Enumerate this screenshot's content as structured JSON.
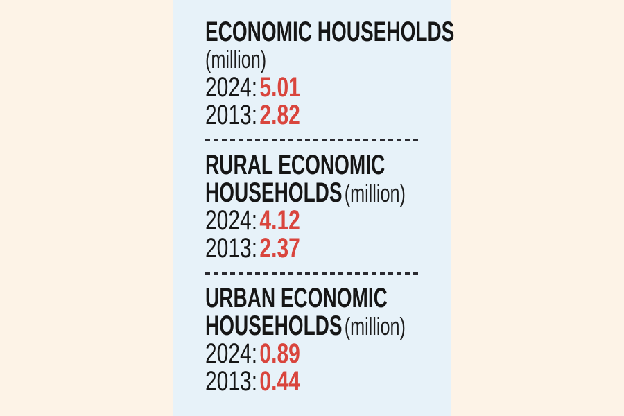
{
  "colors": {
    "page_background": "#fdf3e7",
    "panel_background": "#e7f2f9",
    "text": "#161616",
    "accent_red": "#d9453d",
    "divider": "#2b2b31"
  },
  "infographic": {
    "sections": [
      {
        "title_line1": "ECONOMIC HOUSEHOLDS",
        "unit": "(million)",
        "rows": [
          {
            "label": "2024:",
            "value": "5.01"
          },
          {
            "label": "2013:",
            "value": "2.82"
          }
        ]
      },
      {
        "title_line1": "RURAL ECONOMIC",
        "title_line2": "HOUSEHOLDS",
        "unit": "(million)",
        "rows": [
          {
            "label": "2024:",
            "value": "4.12"
          },
          {
            "label": "2013:",
            "value": "2.37"
          }
        ]
      },
      {
        "title_line1": "URBAN ECONOMIC",
        "title_line2": "HOUSEHOLDS",
        "unit": "(million)",
        "rows": [
          {
            "label": "2024:",
            "value": "0.89"
          },
          {
            "label": "2013:",
            "value": "0.44"
          }
        ]
      }
    ]
  },
  "chart_data": {
    "type": "table",
    "title": "Economic Households (million)",
    "categories": [
      "Economic Households",
      "Rural Economic Households",
      "Urban Economic Households"
    ],
    "series": [
      {
        "name": "2024",
        "values": [
          5.01,
          4.12,
          0.89
        ]
      },
      {
        "name": "2013",
        "values": [
          2.82,
          2.37,
          0.44
        ]
      }
    ],
    "unit": "million"
  }
}
